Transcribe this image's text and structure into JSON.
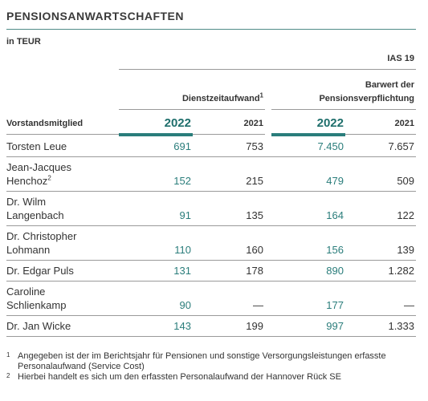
{
  "title": "PENSIONSANWARTSCHAFTEN",
  "unit": "in TEUR",
  "table": {
    "group_header": "IAS 19",
    "col_headers": {
      "service_cost": "Dienstzeitaufwand",
      "service_cost_mark": "1",
      "obligation_lines": [
        "Barwert der",
        "Pensionsverpflichtung"
      ]
    },
    "row_header": "Vorstandsmitglied",
    "years": [
      "2022",
      "2021",
      "2022",
      "2021"
    ],
    "rows": [
      {
        "name": [
          "Torsten Leue"
        ],
        "values": [
          "691",
          "753",
          "7.450",
          "7.657"
        ]
      },
      {
        "name": [
          "Jean-Jacques",
          "Henchoz"
        ],
        "mark": "2",
        "values": [
          "152",
          "215",
          "479",
          "509"
        ]
      },
      {
        "name": [
          "Dr. Wilm",
          "Langenbach"
        ],
        "values": [
          "91",
          "135",
          "164",
          "122"
        ]
      },
      {
        "name": [
          "Dr. Christopher",
          "Lohmann"
        ],
        "values": [
          "110",
          "160",
          "156",
          "139"
        ]
      },
      {
        "name": [
          "Dr. Edgar Puls"
        ],
        "values": [
          "131",
          "178",
          "890",
          "1.282"
        ]
      },
      {
        "name": [
          "Caroline",
          "Schlienkamp"
        ],
        "values": [
          "90",
          "—",
          "177",
          "—"
        ]
      },
      {
        "name": [
          "Dr. Jan Wicke"
        ],
        "values": [
          "143",
          "199",
          "997",
          "1.333"
        ]
      }
    ]
  },
  "footnotes": [
    {
      "mark": "1",
      "text": "Angegeben ist der im Berichtsjahr für Pensionen und sonstige Versorgungsleistungen erfasste Personalaufwand (Service Cost)"
    },
    {
      "mark": "2",
      "text": "Hierbei handelt es sich um den erfassten Personalaufwand der Hannover Rück SE"
    }
  ]
}
